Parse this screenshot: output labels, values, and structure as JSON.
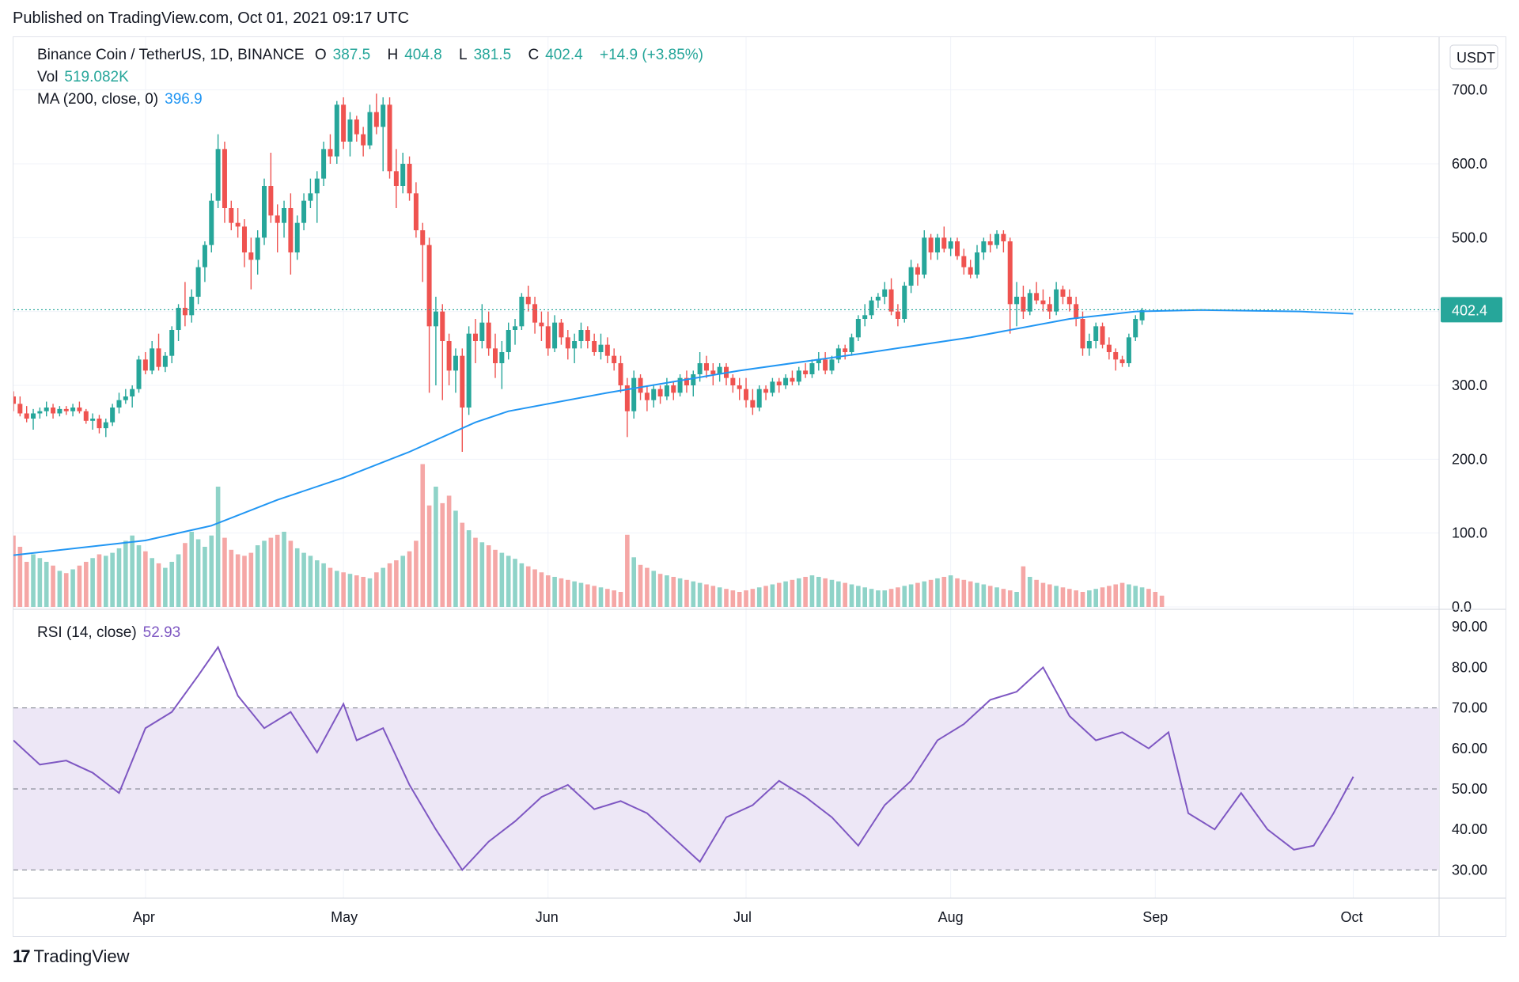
{
  "header": {
    "published": "Published on TradingView.com, Oct 01, 2021 09:17 UTC"
  },
  "legend": {
    "symbol": "Binance Coin / TetherUS, 1D, BINANCE",
    "o_label": "O",
    "o": "387.5",
    "h_label": "H",
    "h": "404.8",
    "l_label": "L",
    "l": "381.5",
    "c_label": "C",
    "c": "402.4",
    "change": "+14.9 (+3.85%)",
    "vol_label": "Vol",
    "vol": "519.082K",
    "ma_label": "MA (200, close, 0)",
    "ma": "396.9",
    "rsi_label": "RSI (14, close)",
    "rsi": "52.93"
  },
  "currency_button": "USDT",
  "last_price_label": "402.4",
  "footer": {
    "brand": "TradingView",
    "logo": "17"
  },
  "colors": {
    "up": "#26a69a",
    "down": "#ef5350",
    "ma": "#2196f3",
    "rsi": "#7e57c2",
    "rsi_band": "#ede7f6",
    "vol_up": "#8fd3c8",
    "vol_down": "#f5a7a6",
    "grid": "#f0f3fa"
  },
  "chart_data": {
    "type": "candlestick",
    "price_axis": {
      "ticks": [
        "700.0",
        "600.0",
        "500.0",
        "400.0",
        "300.0",
        "200.0",
        "100.0",
        "0.0"
      ],
      "range": [
        0,
        750
      ]
    },
    "rsi_axis": {
      "ticks": [
        "90.00",
        "80.00",
        "70.00",
        "60.00",
        "50.00",
        "40.00",
        "30.00"
      ],
      "range": [
        25,
        92
      ],
      "bands": [
        30,
        50,
        70
      ]
    },
    "x_labels": [
      "Apr",
      "May",
      "Jun",
      "Jul",
      "Aug",
      "Sep",
      "Oct"
    ],
    "x_label_days": [
      20,
      50,
      81,
      111,
      142,
      173,
      203
    ],
    "last_price": 402.4,
    "candles": [
      [
        285,
        292,
        265,
        275
      ],
      [
        275,
        285,
        258,
        262
      ],
      [
        262,
        272,
        250,
        255
      ],
      [
        255,
        268,
        240,
        262
      ],
      [
        262,
        270,
        255,
        265
      ],
      [
        265,
        278,
        258,
        270
      ],
      [
        270,
        275,
        255,
        262
      ],
      [
        262,
        272,
        258,
        268
      ],
      [
        268,
        272,
        260,
        265
      ],
      [
        265,
        275,
        258,
        270
      ],
      [
        270,
        278,
        262,
        265
      ],
      [
        265,
        268,
        248,
        252
      ],
      [
        252,
        262,
        240,
        255
      ],
      [
        255,
        260,
        235,
        242
      ],
      [
        242,
        255,
        230,
        250
      ],
      [
        250,
        275,
        245,
        270
      ],
      [
        270,
        290,
        262,
        280
      ],
      [
        280,
        295,
        275,
        285
      ],
      [
        285,
        300,
        270,
        295
      ],
      [
        295,
        340,
        290,
        335
      ],
      [
        335,
        345,
        315,
        320
      ],
      [
        320,
        360,
        315,
        350
      ],
      [
        350,
        370,
        320,
        325
      ],
      [
        325,
        345,
        318,
        340
      ],
      [
        340,
        380,
        330,
        375
      ],
      [
        375,
        410,
        360,
        405
      ],
      [
        405,
        440,
        380,
        395
      ],
      [
        395,
        430,
        385,
        420
      ],
      [
        420,
        470,
        410,
        460
      ],
      [
        460,
        495,
        440,
        490
      ],
      [
        490,
        560,
        480,
        550
      ],
      [
        550,
        640,
        540,
        620
      ],
      [
        620,
        630,
        520,
        540
      ],
      [
        540,
        550,
        510,
        520
      ],
      [
        520,
        540,
        500,
        515
      ],
      [
        515,
        525,
        460,
        480
      ],
      [
        480,
        500,
        430,
        470
      ],
      [
        470,
        510,
        450,
        500
      ],
      [
        500,
        580,
        490,
        570
      ],
      [
        570,
        615,
        520,
        530
      ],
      [
        530,
        545,
        480,
        520
      ],
      [
        520,
        550,
        500,
        540
      ],
      [
        540,
        560,
        450,
        480
      ],
      [
        480,
        530,
        470,
        520
      ],
      [
        520,
        560,
        510,
        550
      ],
      [
        550,
        580,
        540,
        560
      ],
      [
        560,
        590,
        520,
        580
      ],
      [
        580,
        630,
        570,
        620
      ],
      [
        620,
        640,
        600,
        610
      ],
      [
        610,
        685,
        600,
        680
      ],
      [
        680,
        690,
        620,
        630
      ],
      [
        630,
        670,
        610,
        660
      ],
      [
        660,
        665,
        630,
        640
      ],
      [
        640,
        650,
        610,
        625
      ],
      [
        625,
        680,
        620,
        670
      ],
      [
        670,
        695,
        640,
        650
      ],
      [
        650,
        690,
        590,
        680
      ],
      [
        680,
        690,
        580,
        590
      ],
      [
        590,
        620,
        540,
        570
      ],
      [
        570,
        615,
        560,
        600
      ],
      [
        600,
        610,
        550,
        560
      ],
      [
        560,
        575,
        500,
        510
      ],
      [
        510,
        520,
        440,
        490
      ],
      [
        490,
        500,
        290,
        380
      ],
      [
        380,
        420,
        300,
        400
      ],
      [
        400,
        410,
        280,
        360
      ],
      [
        360,
        370,
        300,
        320
      ],
      [
        320,
        350,
        290,
        340
      ],
      [
        340,
        350,
        210,
        270
      ],
      [
        270,
        380,
        260,
        370
      ],
      [
        370,
        390,
        330,
        360
      ],
      [
        360,
        410,
        350,
        385
      ],
      [
        385,
        400,
        340,
        350
      ],
      [
        350,
        370,
        310,
        330
      ],
      [
        330,
        360,
        295,
        345
      ],
      [
        345,
        385,
        335,
        375
      ],
      [
        375,
        390,
        355,
        380
      ],
      [
        380,
        425,
        375,
        420
      ],
      [
        420,
        435,
        400,
        410
      ],
      [
        410,
        420,
        370,
        385
      ],
      [
        385,
        400,
        360,
        380
      ],
      [
        380,
        400,
        340,
        350
      ],
      [
        350,
        395,
        345,
        385
      ],
      [
        385,
        390,
        355,
        365
      ],
      [
        365,
        375,
        335,
        350
      ],
      [
        350,
        370,
        330,
        360
      ],
      [
        360,
        385,
        350,
        375
      ],
      [
        375,
        380,
        350,
        360
      ],
      [
        360,
        370,
        340,
        345
      ],
      [
        345,
        370,
        335,
        355
      ],
      [
        355,
        365,
        330,
        340
      ],
      [
        340,
        350,
        320,
        330
      ],
      [
        330,
        340,
        290,
        300
      ],
      [
        300,
        310,
        230,
        265
      ],
      [
        265,
        320,
        255,
        310
      ],
      [
        310,
        315,
        280,
        290
      ],
      [
        290,
        300,
        265,
        280
      ],
      [
        280,
        300,
        270,
        295
      ],
      [
        295,
        300,
        275,
        285
      ],
      [
        285,
        310,
        280,
        300
      ],
      [
        300,
        305,
        280,
        290
      ],
      [
        290,
        315,
        285,
        310
      ],
      [
        310,
        320,
        290,
        300
      ],
      [
        300,
        320,
        285,
        315
      ],
      [
        315,
        345,
        305,
        330
      ],
      [
        330,
        340,
        310,
        320
      ],
      [
        320,
        330,
        300,
        315
      ],
      [
        315,
        330,
        305,
        325
      ],
      [
        325,
        330,
        300,
        310
      ],
      [
        310,
        315,
        290,
        300
      ],
      [
        300,
        310,
        280,
        295
      ],
      [
        295,
        310,
        270,
        280
      ],
      [
        280,
        295,
        260,
        270
      ],
      [
        270,
        300,
        265,
        295
      ],
      [
        295,
        300,
        280,
        290
      ],
      [
        290,
        310,
        285,
        305
      ],
      [
        305,
        310,
        290,
        300
      ],
      [
        300,
        315,
        295,
        310
      ],
      [
        310,
        320,
        300,
        305
      ],
      [
        305,
        325,
        300,
        320
      ],
      [
        320,
        330,
        310,
        315
      ],
      [
        315,
        335,
        310,
        330
      ],
      [
        330,
        345,
        320,
        335
      ],
      [
        335,
        345,
        315,
        320
      ],
      [
        320,
        340,
        315,
        335
      ],
      [
        335,
        355,
        330,
        350
      ],
      [
        350,
        355,
        335,
        345
      ],
      [
        345,
        370,
        340,
        365
      ],
      [
        365,
        395,
        360,
        390
      ],
      [
        390,
        410,
        380,
        395
      ],
      [
        395,
        420,
        390,
        415
      ],
      [
        415,
        425,
        405,
        420
      ],
      [
        420,
        440,
        410,
        430
      ],
      [
        430,
        445,
        395,
        400
      ],
      [
        400,
        410,
        380,
        390
      ],
      [
        390,
        440,
        385,
        435
      ],
      [
        435,
        470,
        425,
        460
      ],
      [
        460,
        465,
        435,
        450
      ],
      [
        450,
        510,
        445,
        500
      ],
      [
        500,
        505,
        470,
        480
      ],
      [
        480,
        505,
        470,
        500
      ],
      [
        500,
        515,
        480,
        485
      ],
      [
        485,
        500,
        475,
        495
      ],
      [
        495,
        500,
        470,
        475
      ],
      [
        475,
        485,
        450,
        460
      ],
      [
        460,
        470,
        445,
        450
      ],
      [
        450,
        490,
        445,
        480
      ],
      [
        480,
        500,
        470,
        495
      ],
      [
        495,
        505,
        480,
        490
      ],
      [
        490,
        510,
        485,
        505
      ],
      [
        505,
        510,
        480,
        495
      ],
      [
        495,
        500,
        370,
        410
      ],
      [
        410,
        440,
        380,
        420
      ],
      [
        420,
        435,
        390,
        400
      ],
      [
        400,
        430,
        395,
        425
      ],
      [
        425,
        440,
        410,
        415
      ],
      [
        415,
        430,
        400,
        410
      ],
      [
        410,
        420,
        390,
        400
      ],
      [
        400,
        440,
        395,
        430
      ],
      [
        430,
        435,
        410,
        420
      ],
      [
        420,
        430,
        400,
        410
      ],
      [
        410,
        420,
        380,
        390
      ],
      [
        390,
        400,
        340,
        350
      ],
      [
        350,
        370,
        340,
        360
      ],
      [
        360,
        385,
        350,
        380
      ],
      [
        380,
        385,
        350,
        355
      ],
      [
        355,
        365,
        335,
        345
      ],
      [
        345,
        350,
        320,
        335
      ],
      [
        335,
        340,
        325,
        330
      ],
      [
        330,
        370,
        325,
        365
      ],
      [
        365,
        395,
        360,
        390
      ],
      [
        388,
        405,
        382,
        402
      ]
    ],
    "volumes": [
      95,
      80,
      60,
      70,
      65,
      60,
      55,
      48,
      45,
      50,
      55,
      60,
      65,
      70,
      68,
      72,
      78,
      88,
      95,
      82,
      74,
      65,
      58,
      52,
      60,
      70,
      85,
      100,
      90,
      80,
      95,
      160,
      92,
      76,
      70,
      68,
      72,
      82,
      88,
      92,
      96,
      100,
      88,
      78,
      72,
      68,
      62,
      58,
      52,
      48,
      46,
      44,
      42,
      40,
      38,
      46,
      52,
      58,
      62,
      68,
      74,
      88,
      190,
      135,
      160,
      138,
      148,
      128,
      112,
      102,
      92,
      86,
      82,
      76,
      72,
      68,
      64,
      58,
      54,
      50,
      46,
      42,
      40,
      38,
      36,
      34,
      32,
      30,
      28,
      26,
      24,
      22,
      20,
      96,
      66,
      56,
      52,
      48,
      44,
      42,
      40,
      38,
      36,
      34,
      32,
      30,
      28,
      26,
      24,
      22,
      20,
      22,
      24,
      26,
      28,
      30,
      32,
      34,
      36,
      38,
      40,
      42,
      40,
      38,
      36,
      34,
      32,
      30,
      28,
      26,
      24,
      22,
      22,
      24,
      26,
      28,
      30,
      32,
      34,
      36,
      38,
      40,
      42,
      38,
      36,
      34,
      32,
      30,
      28,
      26,
      24,
      22,
      20,
      54,
      40,
      36,
      32,
      30,
      28,
      26,
      24,
      22,
      20,
      22,
      24,
      26,
      28,
      30,
      32,
      30,
      28,
      26,
      24,
      20,
      15
    ],
    "ma200": [
      [
        0,
        70
      ],
      [
        20,
        90
      ],
      [
        30,
        110
      ],
      [
        40,
        145
      ],
      [
        50,
        175
      ],
      [
        60,
        210
      ],
      [
        70,
        250
      ],
      [
        75,
        265
      ],
      [
        90,
        290
      ],
      [
        110,
        320
      ],
      [
        130,
        345
      ],
      [
        145,
        365
      ],
      [
        160,
        390
      ],
      [
        170,
        400
      ],
      [
        180,
        402
      ],
      [
        195,
        400
      ],
      [
        203,
        397
      ]
    ],
    "rsi": [
      [
        0,
        62
      ],
      [
        4,
        56
      ],
      [
        8,
        57
      ],
      [
        12,
        54
      ],
      [
        16,
        49
      ],
      [
        20,
        65
      ],
      [
        24,
        69
      ],
      [
        28,
        78
      ],
      [
        31,
        85
      ],
      [
        34,
        73
      ],
      [
        38,
        65
      ],
      [
        42,
        69
      ],
      [
        46,
        59
      ],
      [
        50,
        71
      ],
      [
        52,
        62
      ],
      [
        56,
        65
      ],
      [
        60,
        51
      ],
      [
        64,
        40
      ],
      [
        68,
        30
      ],
      [
        72,
        37
      ],
      [
        76,
        42
      ],
      [
        80,
        48
      ],
      [
        84,
        51
      ],
      [
        88,
        45
      ],
      [
        92,
        47
      ],
      [
        96,
        44
      ],
      [
        100,
        38
      ],
      [
        104,
        32
      ],
      [
        108,
        43
      ],
      [
        112,
        46
      ],
      [
        116,
        52
      ],
      [
        120,
        48
      ],
      [
        124,
        43
      ],
      [
        128,
        36
      ],
      [
        132,
        46
      ],
      [
        136,
        52
      ],
      [
        140,
        62
      ],
      [
        144,
        66
      ],
      [
        148,
        72
      ],
      [
        152,
        74
      ],
      [
        156,
        80
      ],
      [
        160,
        68
      ],
      [
        164,
        62
      ],
      [
        168,
        64
      ],
      [
        172,
        60
      ],
      [
        175,
        64
      ],
      [
        178,
        44
      ],
      [
        182,
        40
      ],
      [
        186,
        49
      ],
      [
        190,
        40
      ],
      [
        194,
        35
      ],
      [
        197,
        36
      ],
      [
        200,
        44
      ],
      [
        203,
        53
      ]
    ]
  }
}
